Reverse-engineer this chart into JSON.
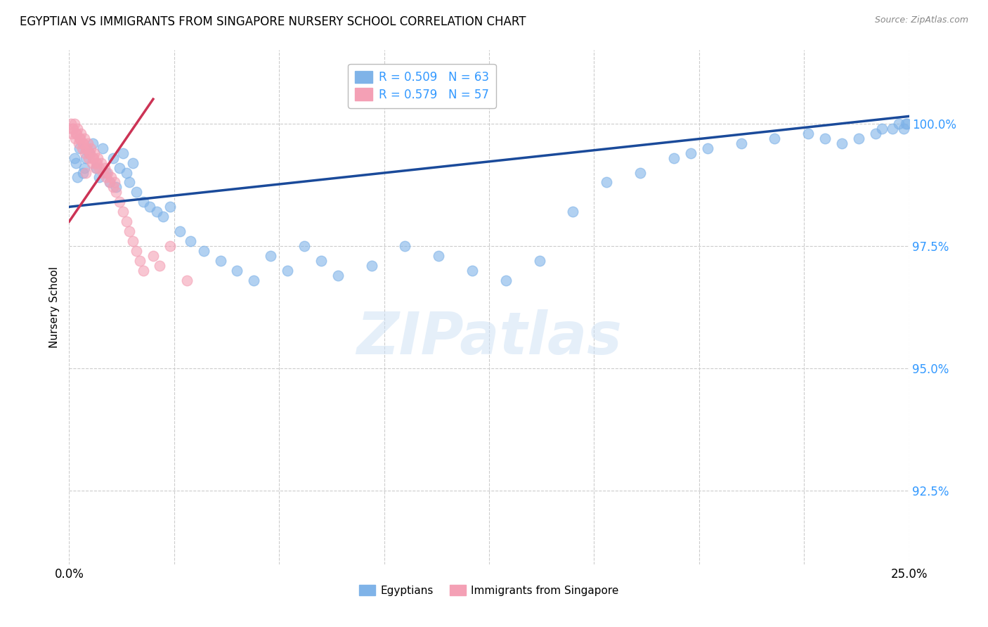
{
  "title": "EGYPTIAN VS IMMIGRANTS FROM SINGAPORE NURSERY SCHOOL CORRELATION CHART",
  "source": "Source: ZipAtlas.com",
  "ylabel": "Nursery School",
  "ytick_values": [
    92.5,
    95.0,
    97.5,
    100.0
  ],
  "xlim": [
    0.0,
    25.0
  ],
  "ylim": [
    91.0,
    101.5
  ],
  "legend_blue_label": "Egyptians",
  "legend_pink_label": "Immigrants from Singapore",
  "r_blue": "R = 0.509",
  "n_blue": "N = 63",
  "r_pink": "R = 0.579",
  "n_pink": "N = 57",
  "blue_color": "#7FB3E8",
  "pink_color": "#F4A0B5",
  "blue_line_color": "#1A4A9A",
  "pink_line_color": "#CC3355",
  "blue_line_x": [
    0.0,
    25.0
  ],
  "blue_line_y": [
    98.3,
    100.15
  ],
  "pink_line_x": [
    0.0,
    2.5
  ],
  "pink_line_y": [
    98.0,
    100.5
  ],
  "blue_scatter_x": [
    0.2,
    0.3,
    0.4,
    0.5,
    0.6,
    0.7,
    0.8,
    0.9,
    1.0,
    1.1,
    1.2,
    1.3,
    1.4,
    1.5,
    1.6,
    1.7,
    1.8,
    1.9,
    2.0,
    2.2,
    2.4,
    2.6,
    2.8,
    3.0,
    3.3,
    3.6,
    4.0,
    4.5,
    5.0,
    5.5,
    6.0,
    6.5,
    7.0,
    7.5,
    8.0,
    9.0,
    10.0,
    11.0,
    12.0,
    13.0,
    14.0,
    15.0,
    16.0,
    17.0,
    18.0,
    18.5,
    19.0,
    20.0,
    21.0,
    22.0,
    22.5,
    23.0,
    23.5,
    24.0,
    24.2,
    24.5,
    24.7,
    24.85,
    24.9,
    24.95,
    0.15,
    0.25,
    0.45
  ],
  "blue_scatter_y": [
    99.2,
    99.5,
    99.0,
    99.3,
    99.4,
    99.6,
    99.1,
    98.9,
    99.5,
    99.0,
    98.8,
    99.3,
    98.7,
    99.1,
    99.4,
    99.0,
    98.8,
    99.2,
    98.6,
    98.4,
    98.3,
    98.2,
    98.1,
    98.3,
    97.8,
    97.6,
    97.4,
    97.2,
    97.0,
    96.8,
    97.3,
    97.0,
    97.5,
    97.2,
    96.9,
    97.1,
    97.5,
    97.3,
    97.0,
    96.8,
    97.2,
    98.2,
    98.8,
    99.0,
    99.3,
    99.4,
    99.5,
    99.6,
    99.7,
    99.8,
    99.7,
    99.6,
    99.7,
    99.8,
    99.9,
    99.9,
    100.0,
    99.9,
    100.0,
    100.0,
    99.3,
    98.9,
    99.1
  ],
  "pink_scatter_x": [
    0.05,
    0.1,
    0.15,
    0.2,
    0.25,
    0.3,
    0.35,
    0.4,
    0.45,
    0.5,
    0.55,
    0.6,
    0.65,
    0.7,
    0.75,
    0.8,
    0.85,
    0.9,
    0.95,
    1.0,
    1.05,
    1.1,
    1.15,
    1.2,
    1.25,
    1.3,
    1.35,
    1.4,
    1.5,
    1.6,
    1.7,
    1.8,
    1.9,
    2.0,
    2.1,
    2.2,
    2.5,
    2.7,
    3.0,
    3.5,
    0.08,
    0.12,
    0.18,
    0.22,
    0.28,
    0.32,
    0.38,
    0.42,
    0.48,
    0.52,
    0.58,
    0.62,
    0.68,
    0.72,
    0.78,
    0.82,
    0.5
  ],
  "pink_scatter_y": [
    100.0,
    99.9,
    100.0,
    99.8,
    99.9,
    99.7,
    99.8,
    99.6,
    99.7,
    99.5,
    99.6,
    99.4,
    99.5,
    99.3,
    99.4,
    99.2,
    99.3,
    99.1,
    99.2,
    99.0,
    99.1,
    98.9,
    99.0,
    98.8,
    98.9,
    98.7,
    98.8,
    98.6,
    98.4,
    98.2,
    98.0,
    97.8,
    97.6,
    97.4,
    97.2,
    97.0,
    97.3,
    97.1,
    97.5,
    96.8,
    99.8,
    99.9,
    99.7,
    99.8,
    99.6,
    99.7,
    99.5,
    99.6,
    99.4,
    99.5,
    99.3,
    99.4,
    99.2,
    99.3,
    99.1,
    99.2,
    99.0
  ]
}
